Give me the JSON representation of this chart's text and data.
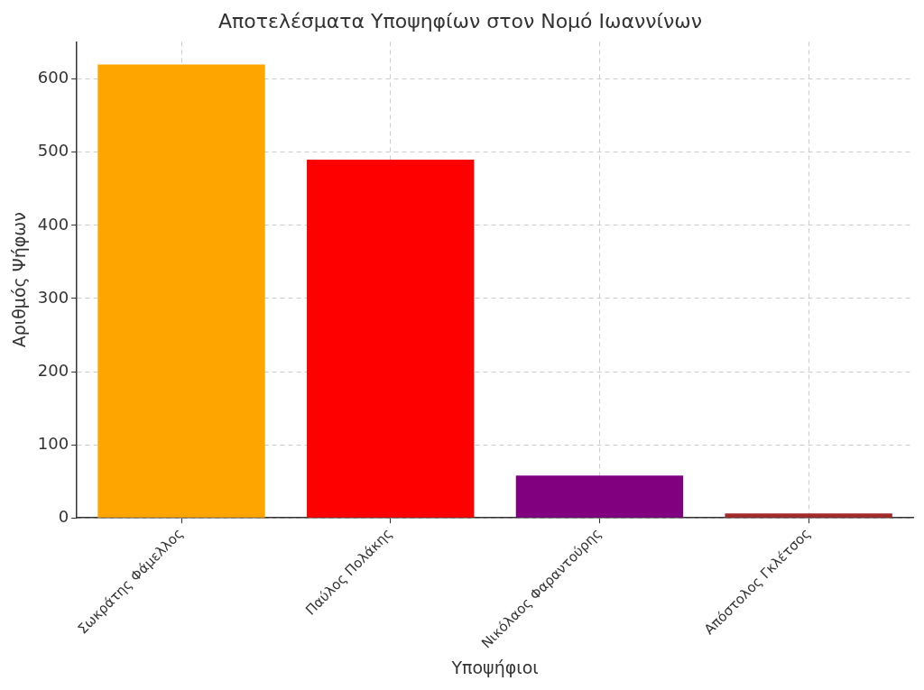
{
  "chart_data": {
    "type": "bar",
    "title": "Αποτελέσματα Υποψηφίων στον Νομό Ιωαννίνων",
    "xlabel": "Υποψήφιοι",
    "ylabel": "Αριθμός Ψήφων",
    "categories": [
      "Σωκράτης Φάμελλος",
      "Παύλος Πολάκης",
      "Νικόλαος Φαραντούρης",
      "Απόστολος Γκλέτσος"
    ],
    "values": [
      620,
      490,
      58,
      6
    ],
    "colors": [
      "#ffa500",
      "#ff0000",
      "#800080",
      "#a52a2a"
    ],
    "ylim": [
      0,
      651
    ],
    "yticks": [
      0,
      100,
      200,
      300,
      400,
      500,
      600
    ],
    "grid": true,
    "legend": false
  }
}
